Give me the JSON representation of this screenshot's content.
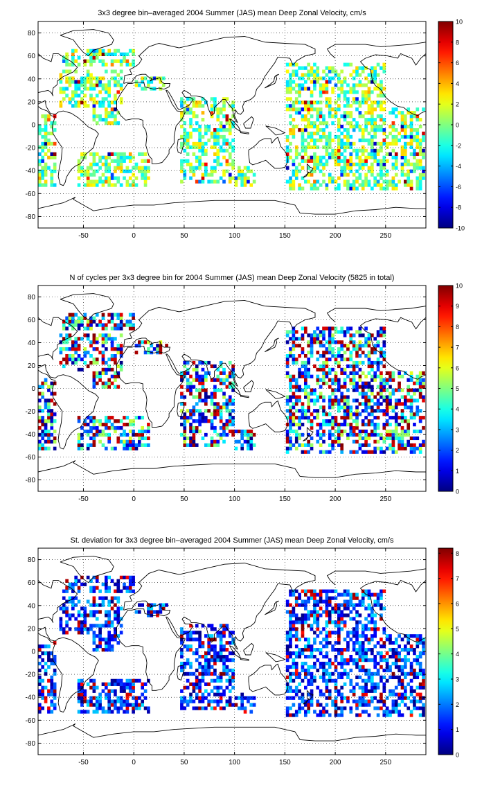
{
  "chart_data": [
    {
      "type": "heatmap",
      "title": "3x3 degree bin–averaged 2004 Summer (JAS) mean Deep Zonal Velocity, cm/s",
      "xlabel": "",
      "ylabel": "",
      "xlim": [
        -95,
        290
      ],
      "ylim": [
        -90,
        90
      ],
      "x_ticks": [
        -50,
        0,
        50,
        100,
        150,
        200,
        250
      ],
      "y_ticks": [
        -80,
        -60,
        -40,
        -20,
        0,
        20,
        40,
        60,
        80
      ],
      "grid": true,
      "colorbar": {
        "min": -10,
        "max": 10,
        "ticks": [
          -10,
          -8,
          -6,
          -4,
          -2,
          0,
          2,
          4,
          6,
          8,
          10
        ],
        "colormap": "jet"
      },
      "bin_size_deg": 3,
      "seed": 11
    },
    {
      "type": "heatmap",
      "title": "N of cycles per 3x3 degree bin for 2004 Summer (JAS) mean Deep Zonal Velocity (5825 in total)",
      "xlabel": "",
      "ylabel": "",
      "xlim": [
        -95,
        290
      ],
      "ylim": [
        -90,
        90
      ],
      "x_ticks": [
        -50,
        0,
        50,
        100,
        150,
        200,
        250
      ],
      "y_ticks": [
        -80,
        -60,
        -40,
        -20,
        0,
        20,
        40,
        60,
        80
      ],
      "grid": true,
      "colorbar": {
        "min": 0,
        "max": 10,
        "ticks": [
          0,
          1,
          2,
          3,
          4,
          5,
          6,
          7,
          8,
          9,
          10
        ],
        "colormap": "jet"
      },
      "bin_size_deg": 3,
      "seed": 23
    },
    {
      "type": "heatmap",
      "title": "St. deviation for 3x3 degree bin–averaged 2004 Summer (JAS) mean Deep Zonal Velocity, cm/s",
      "xlabel": "",
      "ylabel": "",
      "xlim": [
        -95,
        290
      ],
      "ylim": [
        -90,
        90
      ],
      "x_ticks": [
        -50,
        0,
        50,
        100,
        150,
        200,
        250
      ],
      "y_ticks": [
        -80,
        -60,
        -40,
        -20,
        0,
        20,
        40,
        60,
        80
      ],
      "grid": true,
      "colorbar": {
        "min": 0,
        "max": 8.2,
        "ticks": [
          0,
          1,
          2,
          3,
          4,
          5,
          6,
          7,
          8
        ],
        "colormap": "jet"
      },
      "bin_size_deg": 3,
      "seed": 37
    }
  ]
}
